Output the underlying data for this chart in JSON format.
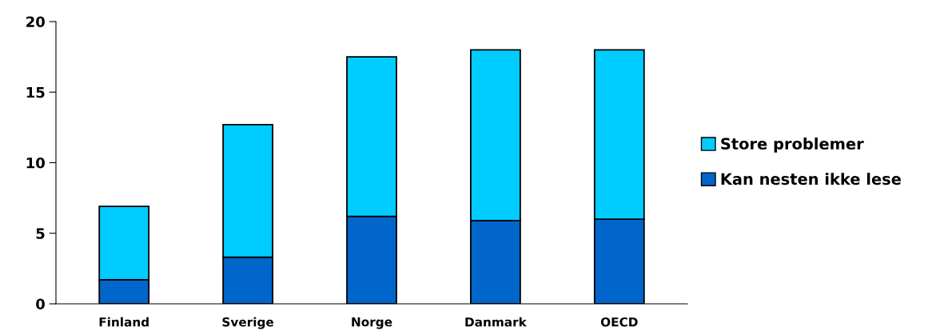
{
  "chart_data": {
    "type": "bar",
    "stacked": true,
    "categories": [
      "Finland",
      "Sverige",
      "Norge",
      "Danmark",
      "OECD"
    ],
    "series": [
      {
        "name": "Kan nesten ikke lese",
        "color": "#0066cc",
        "values": [
          1.7,
          3.3,
          6.2,
          5.9,
          6.0
        ]
      },
      {
        "name": "Store problemer",
        "color": "#00ccff",
        "values": [
          5.2,
          9.4,
          11.3,
          12.1,
          12.0
        ]
      }
    ],
    "ylim": [
      0,
      20
    ],
    "yticks": [
      0,
      5,
      10,
      15,
      20
    ],
    "grid": false,
    "legend": "right"
  }
}
